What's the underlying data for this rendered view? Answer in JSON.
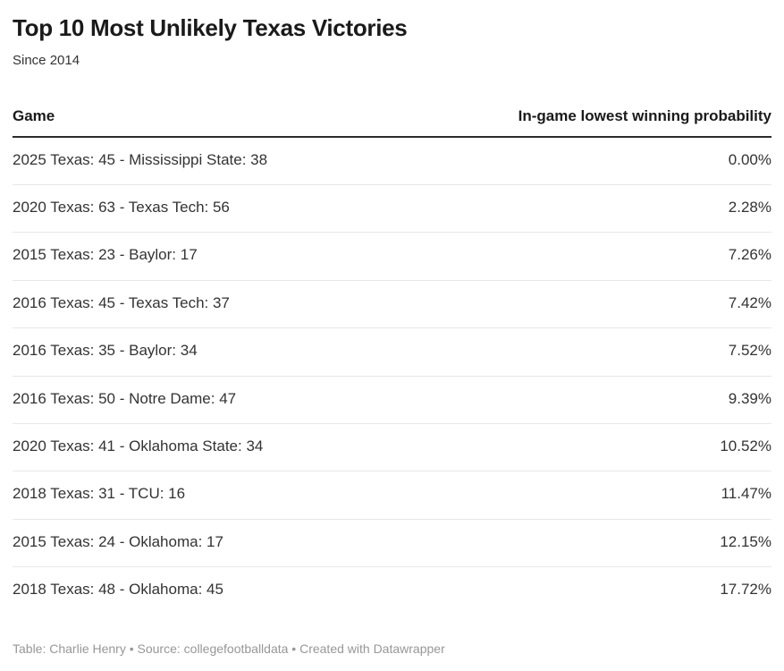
{
  "header": {
    "title": "Top 10 Most Unlikely Texas Victories",
    "subtitle": "Since 2014"
  },
  "chart_data": {
    "type": "table",
    "columns": [
      "Game",
      "In-game lowest winning probability"
    ],
    "rows": [
      {
        "game": "2025 Texas: 45 - Mississippi State: 38",
        "probability": "0.00%"
      },
      {
        "game": "2020 Texas: 63 - Texas Tech: 56",
        "probability": "2.28%"
      },
      {
        "game": "2015 Texas: 23 - Baylor: 17",
        "probability": "7.26%"
      },
      {
        "game": "2016 Texas: 45 - Texas Tech: 37",
        "probability": "7.42%"
      },
      {
        "game": "2016 Texas: 35 - Baylor: 34",
        "probability": "7.52%"
      },
      {
        "game": "2016 Texas: 50 - Notre Dame: 47",
        "probability": "9.39%"
      },
      {
        "game": "2020 Texas: 41 - Oklahoma State: 34",
        "probability": "10.52%"
      },
      {
        "game": "2018 Texas: 31 - TCU: 16",
        "probability": "11.47%"
      },
      {
        "game": "2015 Texas: 24 - Oklahoma: 17",
        "probability": "12.15%"
      },
      {
        "game": "2018 Texas: 48 - Oklahoma: 45",
        "probability": "17.72%"
      }
    ],
    "probability_values_numeric": [
      0.0,
      2.28,
      7.26,
      7.42,
      7.52,
      9.39,
      10.52,
      11.47,
      12.15,
      17.72
    ],
    "title": "Top 10 Most Unlikely Texas Victories",
    "subtitle": "Since 2014"
  },
  "footer": {
    "text": "Table: Charlie Henry • Source: collegefootballdata • Created with Datawrapper"
  },
  "colors": {
    "background": "#ffffff",
    "title_text": "#1a1a1a",
    "body_text": "#333333",
    "header_rule": "#2b2b2b",
    "row_separator": "#e7e7e7",
    "footer_text": "#979797"
  }
}
